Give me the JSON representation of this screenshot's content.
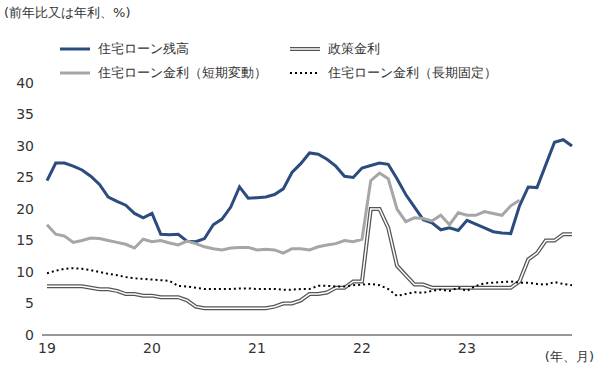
{
  "chart_data": {
    "type": "line",
    "y_label": "(前年比又は年利、%)",
    "x_label": "(年、月)",
    "categories": [
      "19",
      null,
      null,
      null,
      null,
      null,
      null,
      null,
      null,
      null,
      null,
      null,
      "20",
      null,
      null,
      null,
      null,
      null,
      null,
      null,
      null,
      null,
      null,
      null,
      "21",
      null,
      null,
      null,
      null,
      null,
      null,
      null,
      null,
      null,
      null,
      null,
      "22",
      null,
      null,
      null,
      null,
      null,
      null,
      null,
      null,
      null,
      null,
      null,
      "23",
      null,
      null,
      null,
      null,
      null,
      null,
      null,
      null,
      null,
      null,
      null,
      null
    ],
    "series": [
      {
        "name": "住宅ローン残高",
        "color": "#2b4c7e",
        "line_style": "solid",
        "values": [
          24.5,
          27.3,
          27.3,
          26.8,
          26.2,
          25.2,
          23.9,
          21.9,
          21.2,
          20.6,
          19.3,
          18.6,
          19.3,
          16.0,
          15.9,
          16.0,
          14.9,
          14.8,
          15.3,
          17.5,
          18.4,
          20.3,
          23.5,
          21.7,
          21.8,
          21.9,
          22.3,
          23.2,
          25.8,
          27.2,
          28.9,
          28.7,
          27.9,
          26.8,
          25.2,
          25.0,
          26.5,
          26.9,
          27.3,
          27.1,
          24.8,
          22.3,
          20.3,
          18.3,
          17.8,
          16.7,
          17.0,
          16.6,
          18.2,
          17.6,
          17.0,
          16.4,
          16.2,
          16.1,
          20.5,
          23.5,
          23.4,
          27.0,
          30.6,
          31.0,
          30.0
        ]
      },
      {
        "name": "政策金利",
        "color": "#555555",
        "line_style": "double",
        "values": [
          7.75,
          7.75,
          7.75,
          7.75,
          7.75,
          7.5,
          7.25,
          7.25,
          7.0,
          6.5,
          6.5,
          6.25,
          6.25,
          6.0,
          6.0,
          6.0,
          5.5,
          4.5,
          4.25,
          4.25,
          4.25,
          4.25,
          4.25,
          4.25,
          4.25,
          4.25,
          4.5,
          5.0,
          5.0,
          5.5,
          6.5,
          6.5,
          6.75,
          7.5,
          7.5,
          8.5,
          8.5,
          20,
          20,
          17,
          11,
          9.5,
          8,
          8,
          7.5,
          7.5,
          7.5,
          7.5,
          7.5,
          7.5,
          7.5,
          7.5,
          7.5,
          7.5,
          8.5,
          12,
          13,
          15,
          15,
          16,
          16
        ]
      },
      {
        "name": "住宅ローン金利（短期変動）",
        "color": "#a6a6a6",
        "line_style": "solid",
        "values": [
          17.5,
          16.0,
          15.7,
          14.7,
          15.0,
          15.4,
          15.3,
          15.0,
          14.7,
          14.4,
          13.8,
          15.2,
          14.8,
          15.0,
          14.6,
          14.3,
          14.9,
          14.5,
          14.0,
          13.7,
          13.5,
          13.8,
          13.9,
          13.9,
          13.5,
          13.6,
          13.5,
          13.0,
          13.7,
          13.7,
          13.5,
          14.0,
          14.3,
          14.5,
          15.0,
          14.8,
          15.2,
          24.5,
          25.7,
          24.8,
          20.0,
          18.0,
          18.6,
          18.5,
          18.1,
          19.0,
          17.5,
          19.4,
          19.0,
          19.0,
          19.6,
          19.3,
          19.0,
          20.5,
          21.4,
          null,
          null,
          null,
          null,
          null,
          null
        ]
      },
      {
        "name": "住宅ローン金利（長期固定）",
        "color": "#000000",
        "line_style": "dotted",
        "values": [
          9.8,
          10.2,
          10.5,
          10.6,
          10.5,
          10.3,
          10.0,
          9.7,
          9.5,
          9.2,
          9.0,
          8.9,
          8.8,
          8.7,
          8.6,
          7.8,
          7.7,
          7.5,
          7.3,
          7.3,
          7.3,
          7.3,
          7.4,
          7.4,
          7.3,
          7.3,
          7.3,
          7.2,
          7.2,
          7.3,
          7.3,
          7.8,
          7.8,
          7.7,
          7.7,
          7.9,
          8.0,
          8.1,
          7.9,
          7.3,
          6.2,
          6.5,
          6.8,
          6.7,
          7.0,
          7.2,
          7.0,
          7.5,
          7.0,
          7.8,
          8.2,
          8.3,
          8.4,
          8.5,
          8.3,
          8.3,
          8.1,
          8.0,
          8.4,
          8.1,
          7.9
        ]
      }
    ],
    "ylim": [
      0,
      40
    ],
    "yticks": [
      0,
      5,
      10,
      15,
      20,
      25,
      30,
      35,
      40
    ],
    "grid": false,
    "legend": "top"
  }
}
